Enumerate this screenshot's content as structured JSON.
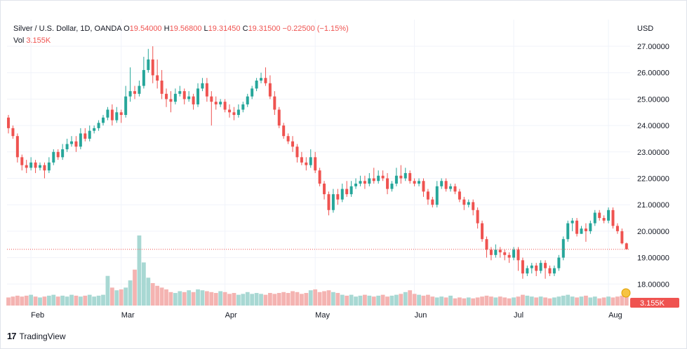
{
  "legend": {
    "symbol": "Silver / U.S. Dollar, 1D, OANDA",
    "o_label": "O",
    "o_value": "19.54000",
    "h_label": "H",
    "h_value": "19.56800",
    "l_label": "L",
    "l_value": "19.31450",
    "c_label": "C",
    "c_value": "19.31500",
    "change": "−0.22500 (−1.15%)",
    "vol_label": "Vol",
    "vol_value": "3.155K"
  },
  "axis_currency": "USD",
  "last_price_label": "3.155K",
  "brand": "TradingView",
  "colors": {
    "up": "#26a69a",
    "down": "#ef5350",
    "up_vol": "#a8d8d3",
    "down_vol": "#f4b3b1",
    "grid": "#f0f3fa",
    "price_line": "#ef5350"
  },
  "chart_data": {
    "type": "candlestick",
    "title": "Silver / U.S. Dollar, 1D, OANDA",
    "yunit": "USD",
    "ylim": [
      17.6,
      27.6
    ],
    "y_ticks": [
      "18.00000",
      "19.00000",
      "20.00000",
      "21.00000",
      "22.00000",
      "23.00000",
      "24.00000",
      "25.00000",
      "26.00000",
      "27.00000"
    ],
    "x_ticks": [
      {
        "label": "Feb",
        "index": 5
      },
      {
        "label": "Mar",
        "index": 25
      },
      {
        "label": "Apr",
        "index": 48
      },
      {
        "label": "May",
        "index": 68
      },
      {
        "label": "Jun",
        "index": 90
      },
      {
        "label": "Jul",
        "index": 112
      },
      {
        "label": "Aug",
        "index": 133
      }
    ],
    "last_close": 19.315,
    "candles": [
      [
        24.3,
        23.9,
        24.4,
        23.7
      ],
      [
        23.9,
        23.6,
        24.0,
        23.5
      ],
      [
        23.6,
        22.8,
        23.7,
        22.6
      ],
      [
        22.8,
        22.5,
        22.9,
        22.3
      ],
      [
        22.5,
        22.4,
        22.7,
        22.2
      ],
      [
        22.4,
        22.6,
        22.8,
        22.3
      ],
      [
        22.6,
        22.4,
        22.7,
        22.2
      ],
      [
        22.4,
        22.5,
        22.6,
        22.3
      ],
      [
        22.5,
        22.3,
        22.6,
        22.0
      ],
      [
        22.3,
        22.6,
        22.8,
        22.2
      ],
      [
        22.6,
        23.0,
        23.1,
        22.5
      ],
      [
        23.0,
        22.8,
        23.1,
        22.7
      ],
      [
        22.8,
        23.1,
        23.3,
        22.7
      ],
      [
        23.1,
        23.3,
        23.5,
        23.0
      ],
      [
        23.3,
        23.4,
        23.6,
        23.2
      ],
      [
        23.4,
        23.2,
        23.6,
        23.0
      ],
      [
        23.2,
        23.7,
        23.9,
        23.1
      ],
      [
        23.7,
        23.5,
        23.9,
        23.4
      ],
      [
        23.5,
        23.8,
        24.0,
        23.4
      ],
      [
        23.8,
        23.9,
        24.0,
        23.7
      ],
      [
        23.9,
        24.1,
        24.2,
        23.8
      ],
      [
        24.1,
        24.3,
        24.4,
        24.0
      ],
      [
        24.3,
        24.6,
        24.7,
        24.2
      ],
      [
        24.6,
        24.2,
        24.8,
        24.0
      ],
      [
        24.2,
        24.5,
        24.7,
        24.1
      ],
      [
        24.5,
        24.4,
        24.6,
        24.1
      ],
      [
        24.4,
        25.1,
        25.5,
        24.3
      ],
      [
        25.1,
        25.3,
        26.2,
        24.9
      ],
      [
        25.3,
        25.2,
        25.5,
        25.0
      ],
      [
        25.2,
        25.5,
        25.7,
        25.1
      ],
      [
        25.5,
        26.1,
        26.6,
        25.4
      ],
      [
        26.1,
        26.5,
        26.9,
        26.0
      ],
      [
        26.5,
        25.9,
        27.0,
        25.6
      ],
      [
        25.9,
        25.7,
        26.5,
        25.4
      ],
      [
        25.7,
        25.2,
        26.1,
        25.0
      ],
      [
        25.2,
        25.0,
        25.4,
        24.7
      ],
      [
        25.0,
        24.9,
        25.3,
        24.5
      ],
      [
        24.9,
        25.2,
        25.4,
        24.8
      ],
      [
        25.2,
        25.3,
        25.5,
        25.1
      ],
      [
        25.3,
        25.0,
        25.4,
        24.8
      ],
      [
        25.0,
        25.1,
        25.3,
        24.9
      ],
      [
        25.1,
        24.8,
        25.2,
        24.6
      ],
      [
        24.8,
        25.4,
        25.6,
        24.7
      ],
      [
        25.4,
        25.6,
        25.8,
        25.3
      ],
      [
        25.6,
        25.1,
        25.8,
        24.9
      ],
      [
        25.1,
        24.9,
        25.3,
        24.0
      ],
      [
        24.9,
        24.8,
        25.1,
        24.6
      ],
      [
        24.8,
        24.9,
        25.0,
        24.7
      ],
      [
        24.9,
        24.6,
        25.0,
        24.5
      ],
      [
        24.6,
        24.5,
        24.8,
        24.3
      ],
      [
        24.5,
        24.4,
        24.7,
        24.2
      ],
      [
        24.4,
        24.6,
        24.8,
        24.3
      ],
      [
        24.6,
        24.8,
        24.9,
        24.5
      ],
      [
        24.8,
        25.1,
        25.2,
        24.7
      ],
      [
        25.1,
        25.4,
        25.5,
        25.0
      ],
      [
        25.4,
        25.7,
        25.8,
        25.3
      ],
      [
        25.7,
        25.8,
        26.0,
        25.6
      ],
      [
        25.8,
        25.6,
        26.2,
        25.5
      ],
      [
        25.6,
        25.1,
        25.9,
        25.0
      ],
      [
        25.1,
        24.6,
        25.3,
        24.4
      ],
      [
        24.6,
        24.0,
        24.7,
        23.9
      ],
      [
        24.0,
        23.6,
        24.1,
        23.5
      ],
      [
        23.6,
        23.4,
        23.7,
        23.3
      ],
      [
        23.4,
        23.2,
        23.6,
        23.0
      ],
      [
        23.2,
        22.8,
        23.3,
        22.6
      ],
      [
        22.8,
        22.6,
        23.0,
        22.5
      ],
      [
        22.6,
        22.5,
        22.8,
        22.3
      ],
      [
        22.5,
        22.8,
        23.1,
        22.4
      ],
      [
        22.8,
        22.3,
        23.0,
        22.2
      ],
      [
        22.3,
        21.8,
        22.4,
        21.7
      ],
      [
        21.8,
        21.4,
        21.9,
        21.2
      ],
      [
        21.4,
        20.8,
        21.5,
        20.6
      ],
      [
        20.8,
        21.4,
        21.6,
        20.7
      ],
      [
        21.4,
        21.2,
        21.6,
        21.0
      ],
      [
        21.2,
        21.6,
        21.8,
        21.1
      ],
      [
        21.6,
        21.4,
        21.9,
        21.3
      ],
      [
        21.4,
        21.7,
        21.9,
        21.3
      ],
      [
        21.7,
        21.8,
        22.0,
        21.6
      ],
      [
        21.8,
        21.9,
        22.1,
        21.7
      ],
      [
        21.9,
        21.8,
        22.1,
        21.6
      ],
      [
        21.8,
        22.0,
        22.2,
        21.7
      ],
      [
        22.0,
        21.9,
        22.4,
        21.8
      ],
      [
        21.9,
        22.1,
        22.3,
        21.8
      ],
      [
        22.1,
        22.0,
        22.3,
        21.9
      ],
      [
        22.0,
        21.6,
        22.2,
        21.4
      ],
      [
        21.6,
        21.8,
        21.9,
        21.5
      ],
      [
        21.8,
        22.1,
        22.4,
        21.7
      ],
      [
        22.1,
        22.0,
        22.5,
        21.8
      ],
      [
        22.0,
        22.2,
        22.4,
        21.9
      ],
      [
        22.2,
        21.9,
        22.3,
        21.8
      ],
      [
        21.9,
        21.8,
        22.0,
        21.7
      ],
      [
        21.8,
        21.9,
        22.0,
        21.7
      ],
      [
        21.9,
        21.5,
        22.0,
        21.3
      ],
      [
        21.5,
        21.2,
        21.6,
        21.0
      ],
      [
        21.2,
        21.0,
        21.3,
        20.9
      ],
      [
        21.0,
        21.7,
        21.9,
        20.9
      ],
      [
        21.7,
        21.9,
        22.0,
        21.6
      ],
      [
        21.9,
        21.6,
        22.0,
        21.5
      ],
      [
        21.6,
        21.7,
        21.8,
        21.5
      ],
      [
        21.7,
        21.5,
        21.8,
        21.4
      ],
      [
        21.5,
        21.2,
        21.6,
        21.1
      ],
      [
        21.2,
        21.0,
        21.3,
        20.8
      ],
      [
        21.0,
        21.1,
        21.2,
        20.9
      ],
      [
        21.1,
        20.8,
        21.2,
        20.6
      ],
      [
        20.8,
        20.3,
        20.9,
        20.1
      ],
      [
        20.3,
        19.7,
        20.4,
        19.6
      ],
      [
        19.7,
        19.3,
        19.8,
        19.0
      ],
      [
        19.3,
        19.1,
        19.4,
        18.9
      ],
      [
        19.1,
        19.3,
        19.5,
        19.0
      ],
      [
        19.3,
        19.2,
        19.4,
        19.0
      ],
      [
        19.2,
        19.1,
        19.3,
        18.9
      ],
      [
        19.1,
        19.0,
        19.2,
        18.8
      ],
      [
        19.0,
        19.3,
        19.4,
        18.9
      ],
      [
        19.3,
        18.9,
        19.4,
        18.5
      ],
      [
        18.9,
        18.4,
        19.0,
        18.2
      ],
      [
        18.4,
        18.6,
        18.7,
        18.3
      ],
      [
        18.6,
        18.7,
        18.8,
        18.4
      ],
      [
        18.7,
        18.5,
        18.8,
        18.3
      ],
      [
        18.5,
        18.8,
        18.9,
        18.4
      ],
      [
        18.8,
        18.6,
        18.9,
        18.2
      ],
      [
        18.6,
        18.4,
        18.7,
        18.3
      ],
      [
        18.4,
        18.6,
        18.7,
        18.3
      ],
      [
        18.6,
        19.0,
        19.1,
        18.5
      ],
      [
        19.0,
        19.7,
        19.8,
        18.9
      ],
      [
        19.7,
        20.3,
        20.4,
        19.6
      ],
      [
        20.3,
        20.4,
        20.5,
        20.0
      ],
      [
        20.4,
        19.9,
        20.5,
        19.8
      ],
      [
        19.9,
        20.1,
        20.2,
        19.9
      ],
      [
        20.1,
        20.0,
        20.3,
        19.6
      ],
      [
        20.0,
        20.3,
        20.4,
        19.9
      ],
      [
        20.3,
        20.7,
        20.8,
        20.2
      ],
      [
        20.7,
        20.5,
        20.8,
        20.4
      ],
      [
        20.5,
        20.4,
        20.6,
        20.3
      ],
      [
        20.4,
        20.8,
        20.9,
        20.3
      ],
      [
        20.8,
        20.2,
        20.9,
        20.1
      ],
      [
        20.2,
        20.0,
        20.3,
        19.9
      ],
      [
        20.0,
        19.54,
        20.1,
        19.5
      ],
      [
        19.54,
        19.315,
        19.568,
        19.3145
      ]
    ],
    "volumes": [
      0.9,
      1.0,
      1.1,
      1.0,
      1.1,
      1.2,
      1.0,
      0.9,
      1.0,
      1.1,
      1.2,
      1.0,
      1.1,
      1.0,
      1.2,
      1.1,
      1.0,
      1.1,
      1.2,
      1.0,
      1.1,
      1.2,
      3.3,
      2.0,
      1.7,
      1.8,
      2.0,
      2.8,
      4.0,
      7.8,
      4.8,
      3.1,
      2.5,
      2.2,
      2.0,
      1.8,
      1.5,
      1.4,
      1.6,
      1.5,
      1.7,
      1.5,
      1.8,
      1.7,
      1.6,
      1.5,
      1.4,
      1.6,
      1.5,
      1.3,
      1.4,
      1.2,
      1.3,
      1.5,
      1.3,
      1.4,
      1.3,
      1.2,
      1.4,
      1.3,
      1.4,
      1.5,
      1.4,
      1.6,
      1.5,
      1.3,
      1.4,
      1.7,
      1.8,
      1.5,
      1.6,
      1.7,
      1.5,
      1.4,
      1.2,
      1.1,
      1.2,
      1.0,
      1.1,
      1.2,
      1.1,
      1.0,
      1.1,
      1.2,
      1.0,
      1.1,
      1.2,
      1.3,
      1.5,
      1.7,
      1.3,
      1.2,
      1.1,
      1.2,
      1.0,
      0.9,
      1.0,
      0.9,
      1.1,
      0.8,
      0.9,
      0.8,
      0.9,
      0.8,
      0.9,
      1.0,
      1.1,
      1.0,
      0.9,
      1.0,
      0.9,
      0.8,
      0.9,
      1.0,
      1.2,
      1.1,
      1.0,
      0.9,
      1.0,
      0.9,
      0.8,
      0.9,
      1.0,
      1.1,
      1.2,
      1.0,
      0.9,
      1.0,
      1.1,
      0.9,
      1.0,
      0.8,
      0.9,
      1.0,
      0.9,
      1.0,
      1.1,
      1.2
    ]
  }
}
